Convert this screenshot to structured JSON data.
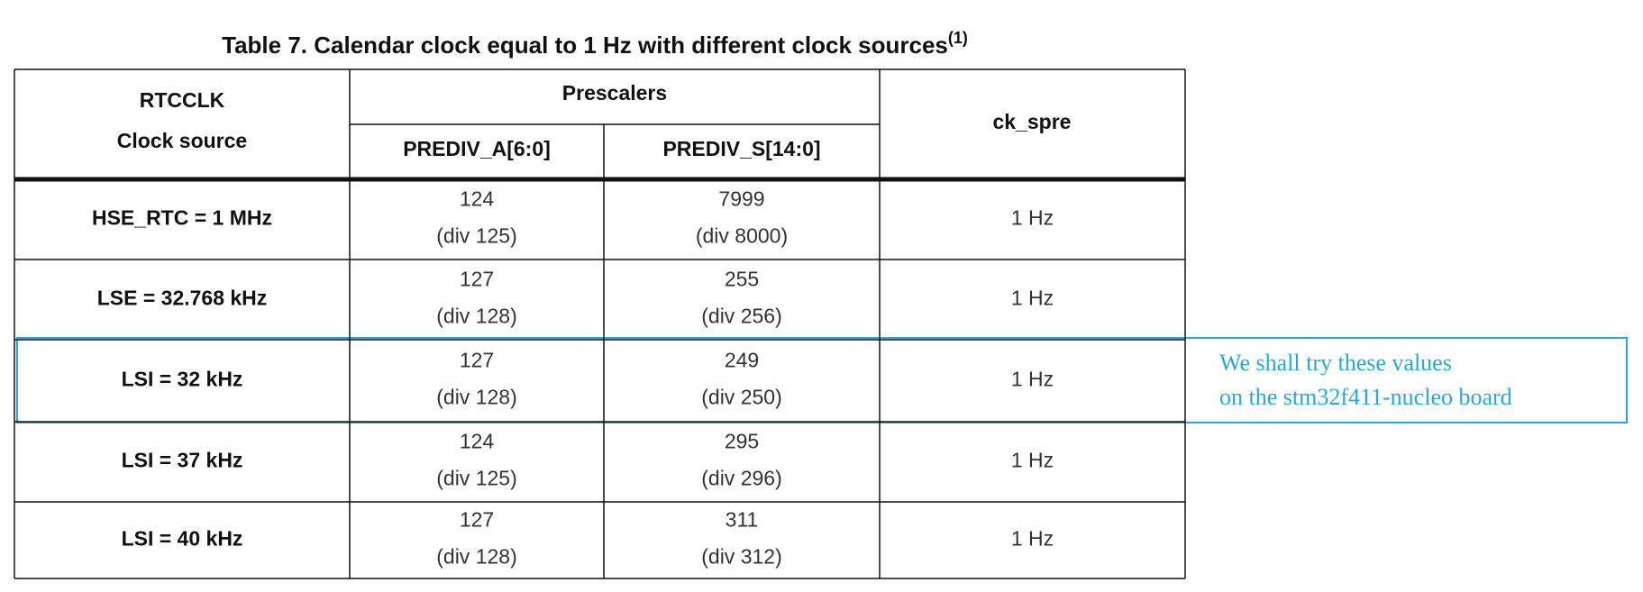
{
  "title": "Table 7. Calendar clock equal to 1 Hz with different clock sources",
  "title_note": "(1)",
  "header": {
    "source": [
      "RTCCLK",
      "Clock source"
    ],
    "group": "Prescalers",
    "columns": [
      "PREDIV_A[6:0]",
      "PREDIV_S[14:0]"
    ],
    "output": "ck_spre"
  },
  "rows": [
    [
      "HSE_RTC = 1 MHz",
      "124",
      "(div 125)",
      "7999",
      "(div 8000)",
      "1 Hz"
    ],
    [
      "LSE = 32.768 kHz",
      "127",
      "(div 128)",
      "255",
      "(div 256)",
      "1 Hz"
    ],
    [
      "LSI = 32 kHz",
      "127",
      "(div 128)",
      "249",
      "(div 250)",
      "1 Hz"
    ],
    [
      "LSI = 37 kHz",
      "124",
      "(div 125)",
      "295",
      "(div 296)",
      "1 Hz"
    ],
    [
      "LSI = 40 kHz",
      "127",
      "(div 128)",
      "311",
      "(div 312)",
      "1 Hz"
    ]
  ],
  "annotation": [
    "We shall try these values",
    "on the stm32f411-nucleo board"
  ]
}
